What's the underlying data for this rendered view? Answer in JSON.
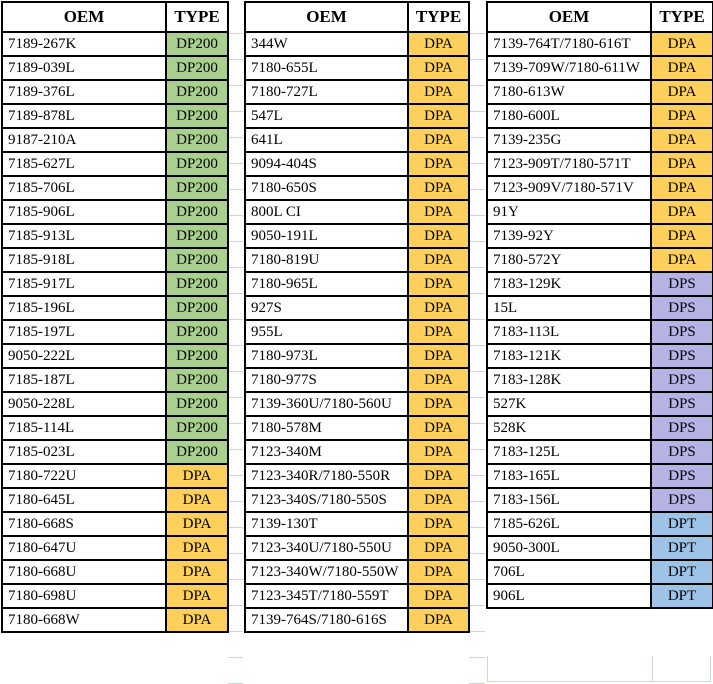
{
  "type_colors": {
    "DP200": "#a9d08e",
    "DPA": "#fcd05a",
    "DPS": "#b4b3e4",
    "DPT": "#9dc3e6"
  },
  "tables": [
    {
      "headers": [
        "OEM",
        "TYPE"
      ],
      "rows": [
        {
          "oem": "7189-267K",
          "type": "DP200"
        },
        {
          "oem": "7189-039L",
          "type": "DP200"
        },
        {
          "oem": "7189-376L",
          "type": "DP200"
        },
        {
          "oem": "7189-878L",
          "type": "DP200"
        },
        {
          "oem": "9187-210A",
          "type": "DP200"
        },
        {
          "oem": "7185-627L",
          "type": "DP200"
        },
        {
          "oem": "7185-706L",
          "type": "DP200"
        },
        {
          "oem": "7185-906L",
          "type": "DP200"
        },
        {
          "oem": "7185-913L",
          "type": "DP200"
        },
        {
          "oem": "7185-918L",
          "type": "DP200"
        },
        {
          "oem": "7185-917L",
          "type": "DP200"
        },
        {
          "oem": "7185-196L",
          "type": "DP200"
        },
        {
          "oem": "7185-197L",
          "type": "DP200"
        },
        {
          "oem": "9050-222L",
          "type": "DP200"
        },
        {
          "oem": "7185-187L",
          "type": "DP200"
        },
        {
          "oem": "9050-228L",
          "type": "DP200"
        },
        {
          "oem": "7185-114L",
          "type": "DP200"
        },
        {
          "oem": "7185-023L",
          "type": "DP200"
        },
        {
          "oem": "7180-722U",
          "type": "DPA"
        },
        {
          "oem": "7180-645L",
          "type": "DPA"
        },
        {
          "oem": "7180-668S",
          "type": "DPA"
        },
        {
          "oem": "7180-647U",
          "type": "DPA"
        },
        {
          "oem": "7180-668U",
          "type": "DPA"
        },
        {
          "oem": "7180-698U",
          "type": "DPA"
        },
        {
          "oem": "7180-668W",
          "type": "DPA"
        }
      ]
    },
    {
      "headers": [
        "OEM",
        "TYPE"
      ],
      "rows": [
        {
          "oem": "344W",
          "type": "DPA"
        },
        {
          "oem": "7180-655L",
          "type": "DPA"
        },
        {
          "oem": "7180-727L",
          "type": "DPA"
        },
        {
          "oem": "547L",
          "type": "DPA"
        },
        {
          "oem": "641L",
          "type": "DPA"
        },
        {
          "oem": "9094-404S",
          "type": "DPA"
        },
        {
          "oem": "7180-650S",
          "type": "DPA"
        },
        {
          "oem": "800L CI",
          "type": "DPA"
        },
        {
          "oem": "9050-191L",
          "type": "DPA"
        },
        {
          "oem": "7180-819U",
          "type": "DPA"
        },
        {
          "oem": "7180-965L",
          "type": "DPA"
        },
        {
          "oem": "927S",
          "type": "DPA"
        },
        {
          "oem": "955L",
          "type": "DPA"
        },
        {
          "oem": "7180-973L",
          "type": "DPA"
        },
        {
          "oem": "7180-977S",
          "type": "DPA"
        },
        {
          "oem": "7139-360U/7180-560U",
          "type": "DPA"
        },
        {
          "oem": "7180-578M",
          "type": "DPA"
        },
        {
          "oem": "7123-340M",
          "type": "DPA"
        },
        {
          "oem": "7123-340R/7180-550R",
          "type": "DPA"
        },
        {
          "oem": "7123-340S/7180-550S",
          "type": "DPA"
        },
        {
          "oem": "7139-130T",
          "type": "DPA"
        },
        {
          "oem": "7123-340U/7180-550U",
          "type": "DPA"
        },
        {
          "oem": "7123-340W/7180-550W",
          "type": "DPA"
        },
        {
          "oem": "7123-345T/7180-559T",
          "type": "DPA"
        },
        {
          "oem": "7139-764S/7180-616S",
          "type": "DPA"
        }
      ]
    },
    {
      "headers": [
        "OEM",
        "TYPE"
      ],
      "rows": [
        {
          "oem": "7139-764T/7180-616T",
          "type": "DPA"
        },
        {
          "oem": "7139-709W/7180-611W",
          "type": "DPA"
        },
        {
          "oem": "7180-613W",
          "type": "DPA"
        },
        {
          "oem": "7180-600L",
          "type": "DPA"
        },
        {
          "oem": "7139-235G",
          "type": "DPA"
        },
        {
          "oem": "7123-909T/7180-571T",
          "type": "DPA"
        },
        {
          "oem": "7123-909V/7180-571V",
          "type": "DPA"
        },
        {
          "oem": "91Y",
          "type": "DPA"
        },
        {
          "oem": "7139-92Y",
          "type": "DPA"
        },
        {
          "oem": "7180-572Y",
          "type": "DPA"
        },
        {
          "oem": "7183-129K",
          "type": "DPS"
        },
        {
          "oem": "15L",
          "type": "DPS"
        },
        {
          "oem": "7183-113L",
          "type": "DPS"
        },
        {
          "oem": "7183-121K",
          "type": "DPS"
        },
        {
          "oem": "7183-128K",
          "type": "DPS"
        },
        {
          "oem": "527K",
          "type": "DPS"
        },
        {
          "oem": "528K",
          "type": "DPS"
        },
        {
          "oem": "7183-125L",
          "type": "DPS"
        },
        {
          "oem": "7183-165L",
          "type": "DPS"
        },
        {
          "oem": "7183-156L",
          "type": "DPS"
        },
        {
          "oem": "7185-626L",
          "type": "DPT"
        },
        {
          "oem": "9050-300L",
          "type": "DPT"
        },
        {
          "oem": "706L",
          "type": "DPT"
        },
        {
          "oem": "906L",
          "type": "DPT"
        }
      ]
    }
  ]
}
